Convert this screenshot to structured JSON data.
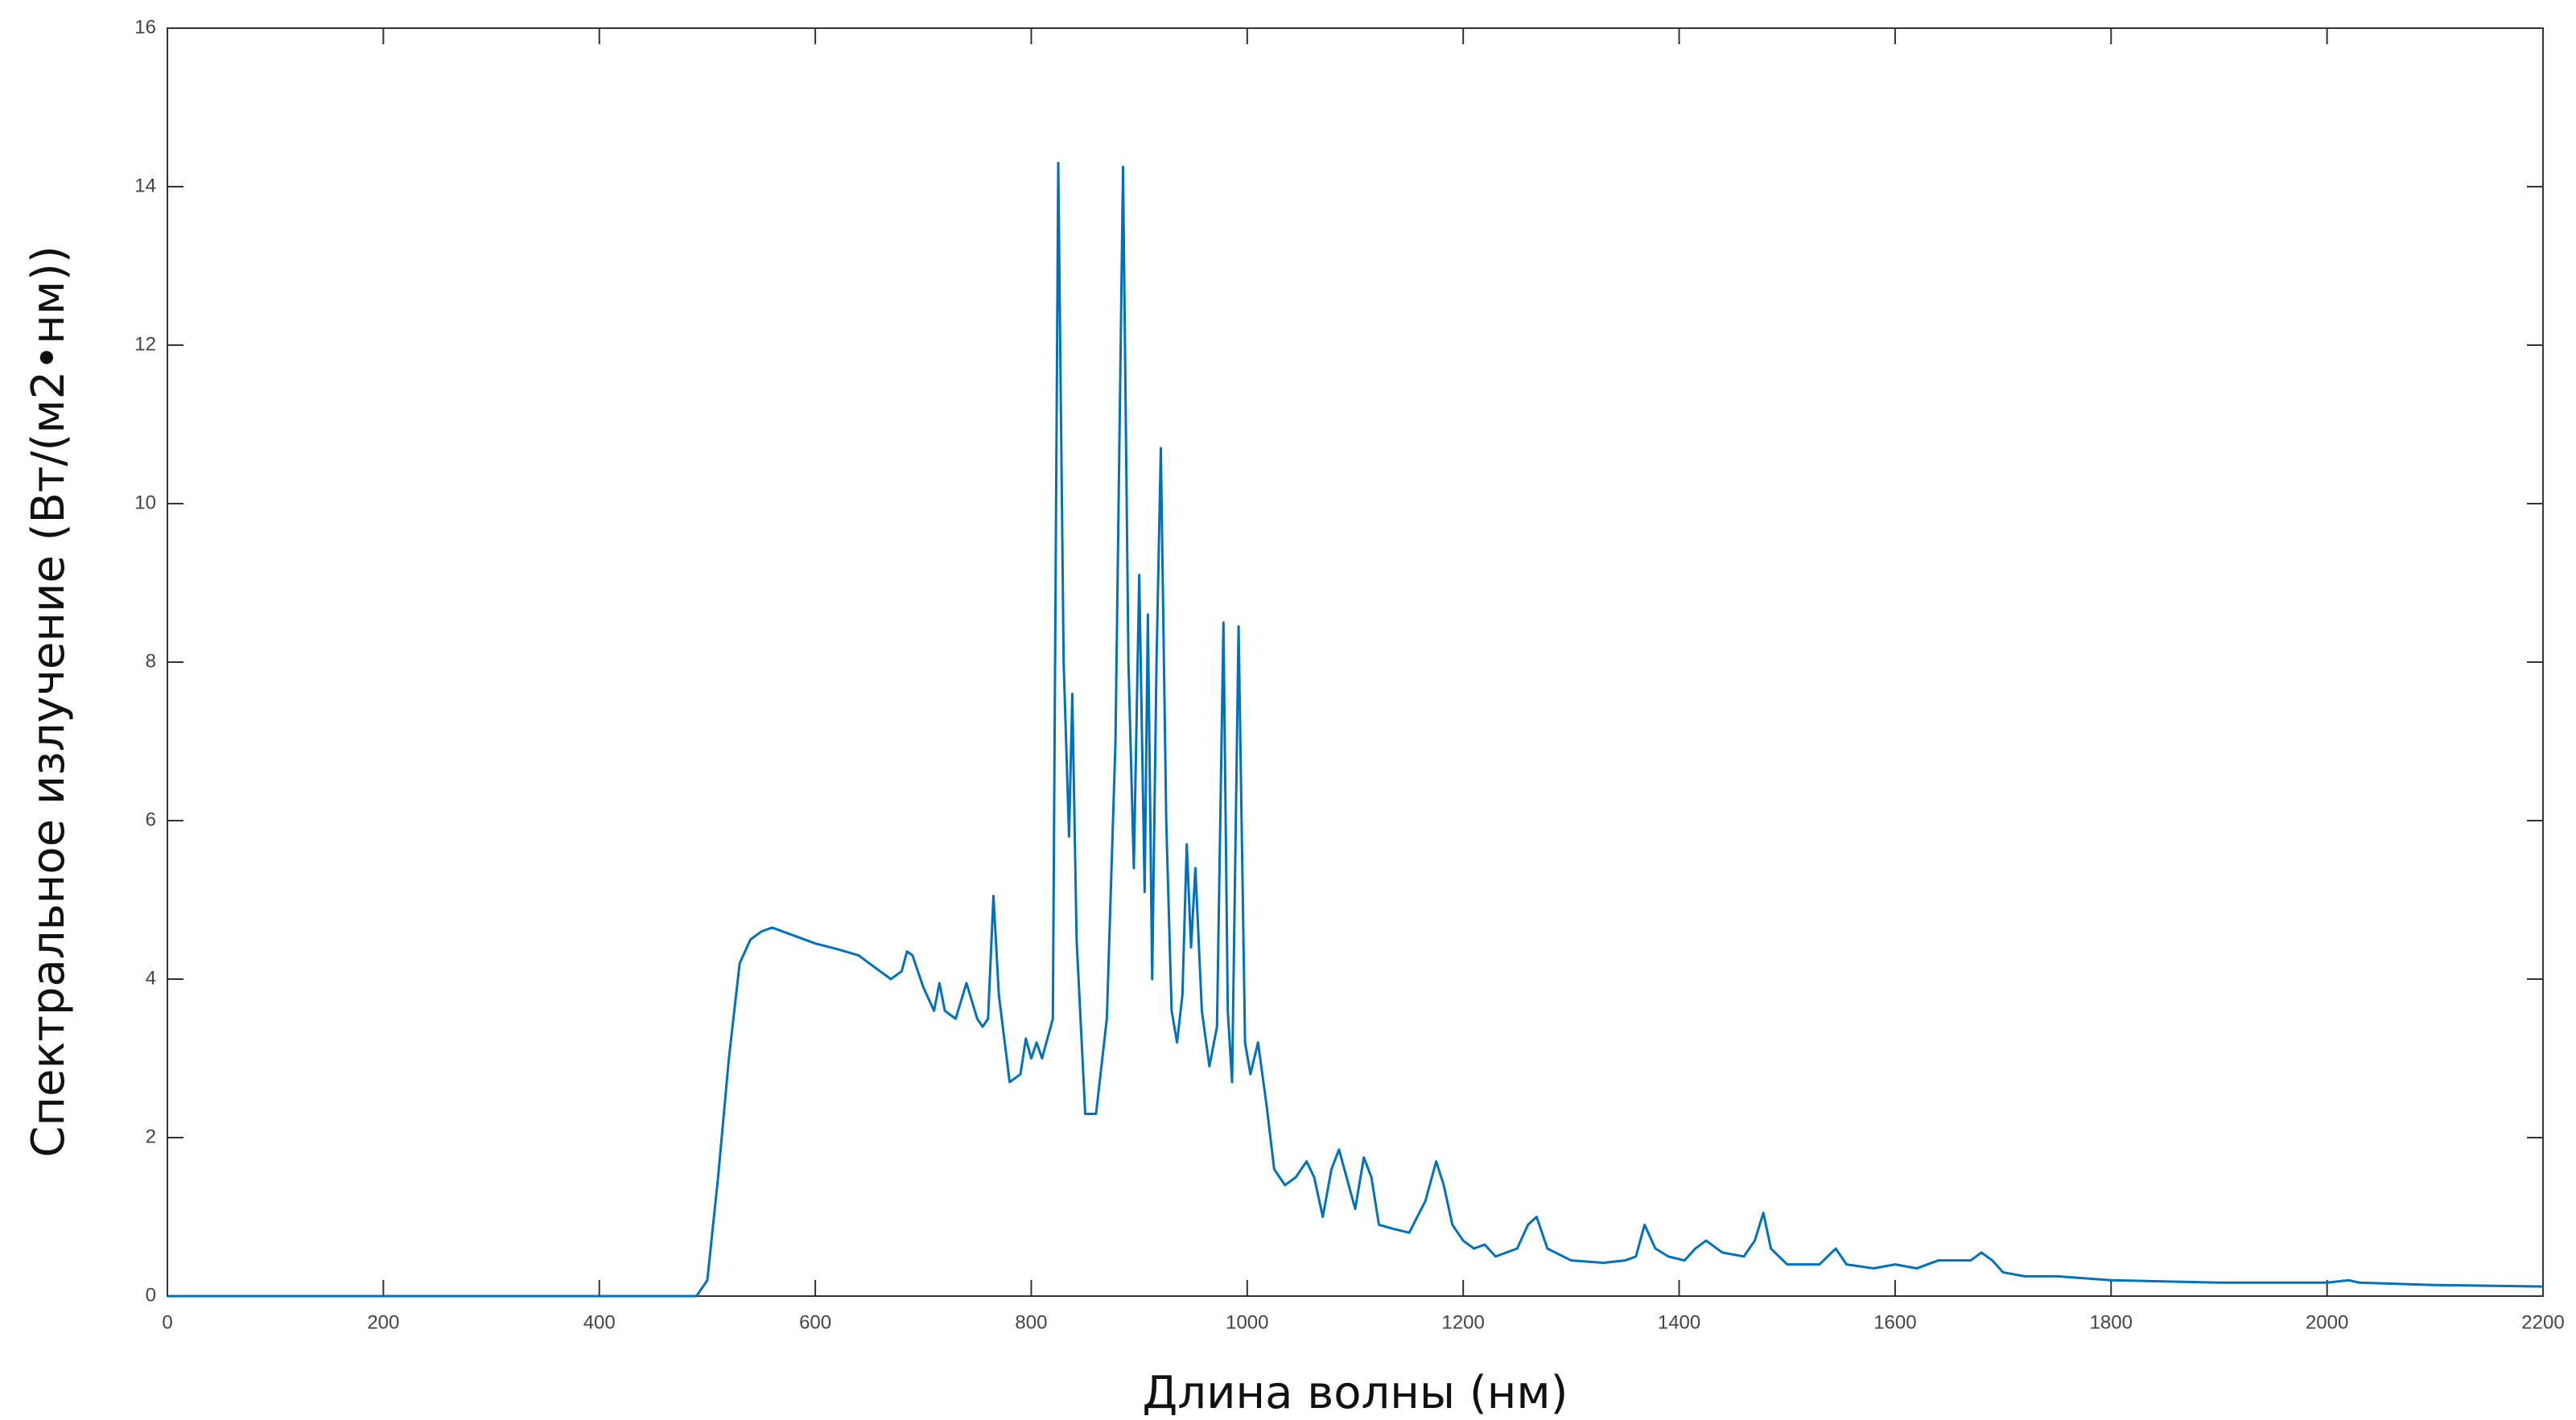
{
  "chart_data": {
    "type": "line",
    "xlabel": "Длина волны (нм)",
    "ylabel": "Спектральное излучение (Вт/(м2•нм))",
    "x": [
      0,
      490,
      500,
      510,
      520,
      530,
      540,
      550,
      560,
      580,
      600,
      620,
      640,
      650,
      660,
      670,
      680,
      685,
      690,
      700,
      710,
      715,
      720,
      730,
      740,
      750,
      755,
      760,
      765,
      770,
      780,
      790,
      795,
      800,
      805,
      810,
      820,
      825,
      830,
      835,
      838,
      842,
      850,
      860,
      870,
      878,
      885,
      890,
      895,
      900,
      905,
      908,
      912,
      916,
      920,
      925,
      930,
      935,
      940,
      944,
      948,
      952,
      958,
      965,
      972,
      978,
      982,
      986,
      992,
      998,
      1003,
      1010,
      1018,
      1025,
      1035,
      1045,
      1055,
      1062,
      1070,
      1078,
      1085,
      1092,
      1100,
      1108,
      1115,
      1122,
      1135,
      1150,
      1165,
      1175,
      1182,
      1190,
      1200,
      1210,
      1220,
      1230,
      1250,
      1260,
      1268,
      1278,
      1300,
      1330,
      1350,
      1360,
      1368,
      1378,
      1390,
      1405,
      1415,
      1425,
      1440,
      1460,
      1470,
      1478,
      1485,
      1500,
      1530,
      1545,
      1555,
      1580,
      1600,
      1620,
      1640,
      1670,
      1680,
      1690,
      1700,
      1720,
      1750,
      1800,
      1900,
      2000,
      2020,
      2030,
      2100,
      2200
    ],
    "values": [
      0,
      0,
      0.2,
      1.5,
      3,
      4.2,
      4.5,
      4.6,
      4.65,
      4.55,
      4.45,
      4.38,
      4.3,
      4.2,
      4.1,
      4.0,
      4.1,
      4.35,
      4.3,
      3.9,
      3.6,
      3.95,
      3.6,
      3.5,
      3.95,
      3.5,
      3.4,
      3.5,
      5.05,
      3.8,
      2.7,
      2.8,
      3.25,
      3.0,
      3.2,
      3.0,
      3.5,
      14.3,
      8,
      5.8,
      7.6,
      4.5,
      2.3,
      2.3,
      3.5,
      7,
      14.25,
      8,
      5.4,
      9.1,
      5.1,
      8.6,
      4.0,
      8,
      10.7,
      6,
      3.6,
      3.2,
      3.8,
      5.7,
      4.4,
      5.4,
      3.6,
      2.9,
      3.4,
      8.5,
      3.6,
      2.7,
      8.45,
      3.2,
      2.8,
      3.2,
      2.4,
      1.6,
      1.4,
      1.5,
      1.7,
      1.5,
      1.0,
      1.6,
      1.85,
      1.5,
      1.1,
      1.75,
      1.5,
      0.9,
      0.85,
      0.8,
      1.2,
      1.7,
      1.4,
      0.9,
      0.7,
      0.6,
      0.65,
      0.5,
      0.6,
      0.9,
      1.0,
      0.6,
      0.45,
      0.42,
      0.45,
      0.5,
      0.9,
      0.6,
      0.5,
      0.45,
      0.6,
      0.7,
      0.55,
      0.5,
      0.7,
      1.05,
      0.6,
      0.4,
      0.4,
      0.6,
      0.4,
      0.35,
      0.4,
      0.35,
      0.45,
      0.45,
      0.55,
      0.45,
      0.3,
      0.25,
      0.25,
      0.2,
      0.17,
      0.17,
      0.2,
      0.17,
      0.14,
      0.12
    ],
    "color": "#0072bd",
    "xlim": [
      0,
      2200
    ],
    "xticks": [
      0,
      200,
      400,
      600,
      800,
      1000,
      1200,
      1400,
      1600,
      1800,
      2000,
      2200
    ],
    "ylim": [
      0,
      16
    ],
    "yticks": [
      0,
      2,
      4,
      6,
      8,
      10,
      12,
      14,
      16
    ]
  }
}
